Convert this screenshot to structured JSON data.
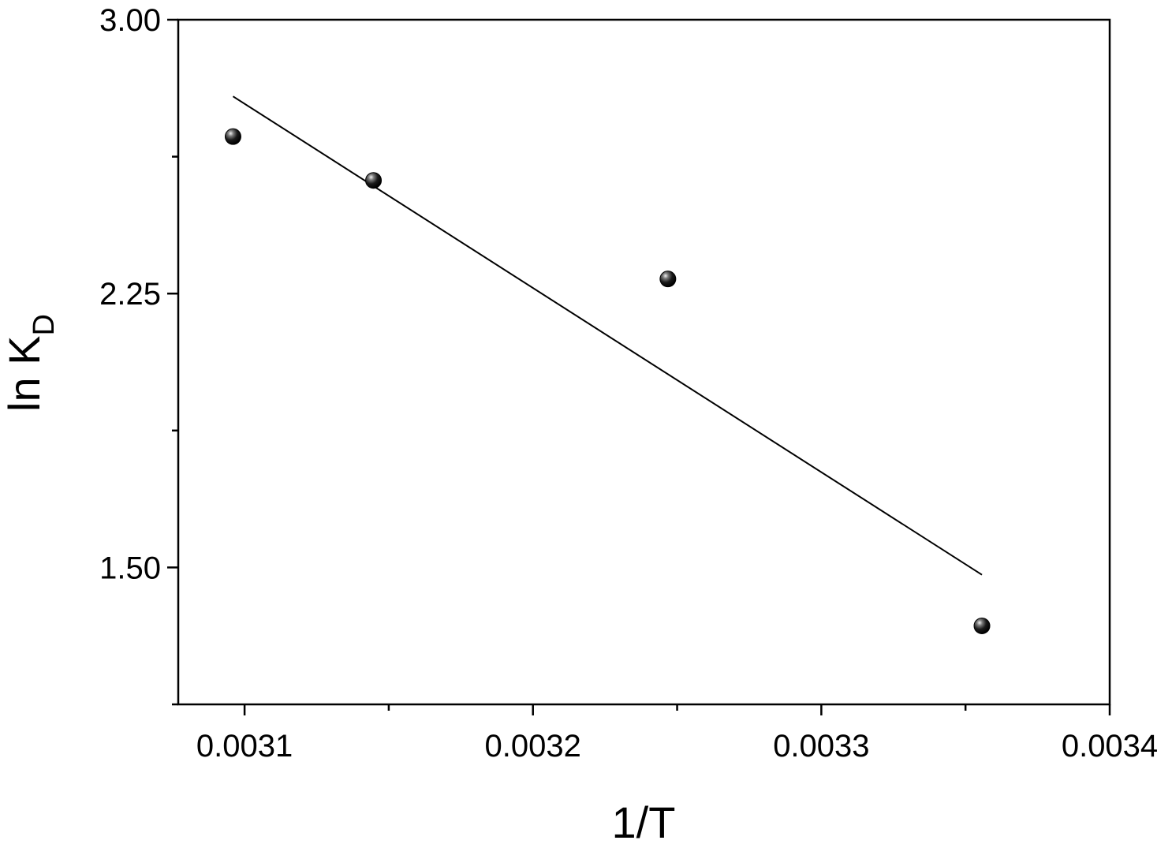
{
  "chart_data": {
    "type": "scatter",
    "title": "",
    "xlabel": "1/T",
    "ylabel": {
      "main": "ln K",
      "subscript": "D"
    },
    "xlim": [
      0.003077,
      0.0034
    ],
    "ylim": [
      1.125,
      3.0
    ],
    "x_ticks": [
      {
        "value": 0.0031,
        "label": "0.0031"
      },
      {
        "value": 0.0032,
        "label": "0.0032"
      },
      {
        "value": 0.0033,
        "label": "0.0033"
      },
      {
        "value": 0.0034,
        "label": "0.0034"
      }
    ],
    "x_minor_ticks": [
      0.00315,
      0.00325,
      0.00335
    ],
    "y_ticks": [
      {
        "value": 3.0,
        "label": "3.00"
      },
      {
        "value": 2.25,
        "label": "2.25"
      },
      {
        "value": 1.5,
        "label": "1.50"
      }
    ],
    "y_minor_ticks": [
      2.625,
      1.875,
      1.125
    ],
    "grid": false,
    "series": [
      {
        "marker": "sphere",
        "color": "#000000",
        "x": [
          0.003096,
          0.0031447,
          0.0032468,
          0.0033557
        ],
        "y": [
          2.68,
          2.56,
          2.29,
          1.34
        ]
      }
    ],
    "fit_line": {
      "color": "#000000",
      "x": [
        0.003096,
        0.0033557
      ],
      "y": [
        2.79,
        1.48
      ]
    }
  }
}
